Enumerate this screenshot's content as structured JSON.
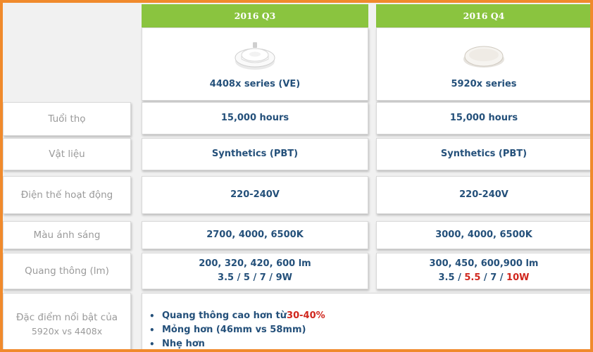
{
  "columns": [
    {
      "period": "2016 Q3",
      "product": "4408x series (VE)"
    },
    {
      "period": "2016 Q4",
      "product": "5920x series"
    }
  ],
  "rows": [
    {
      "label": "Tuổi thọ",
      "q3": "15,000 hours",
      "q4": "15,000 hours"
    },
    {
      "label": "Vật liệu",
      "q3": "Synthetics (PBT)",
      "q4": "Synthetics (PBT)"
    },
    {
      "label": "Điện thế hoạt động",
      "q3": "220-240V",
      "q4": "220-240V"
    },
    {
      "label": "Màu ánh sáng",
      "q3": "2700, 4000, 6500K",
      "q4": "3000, 4000, 6500K"
    },
    {
      "label": "Quang thông (lm)",
      "q3": {
        "line1": "200, 320, 420, 600 lm",
        "line2": "3.5 / 5 / 7 / 9W"
      },
      "q4": {
        "line1": "300, 450, 600,900 lm",
        "line2_parts": [
          "3.5 / ",
          "5.5",
          " / 7 / ",
          "10W"
        ]
      }
    }
  ],
  "highlight": {
    "label_line1": "Đặc điểm nổi bật của",
    "label_line2": "5920x vs 4408x",
    "bullets": [
      {
        "text": "Quang thông cao hơn từ ",
        "emphasis": "30-40%"
      },
      {
        "text": "Mỏng hơn (46mm vs 58mm)"
      },
      {
        "text": "Nhẹ hơn"
      }
    ],
    "bullet_glyph": "•"
  },
  "colors": {
    "frame": "#f08a2c",
    "header_green": "#8ac43f",
    "value_blue": "#24507a",
    "label_grey": "#9a9a9a",
    "emphasis_red": "#d0261d"
  }
}
